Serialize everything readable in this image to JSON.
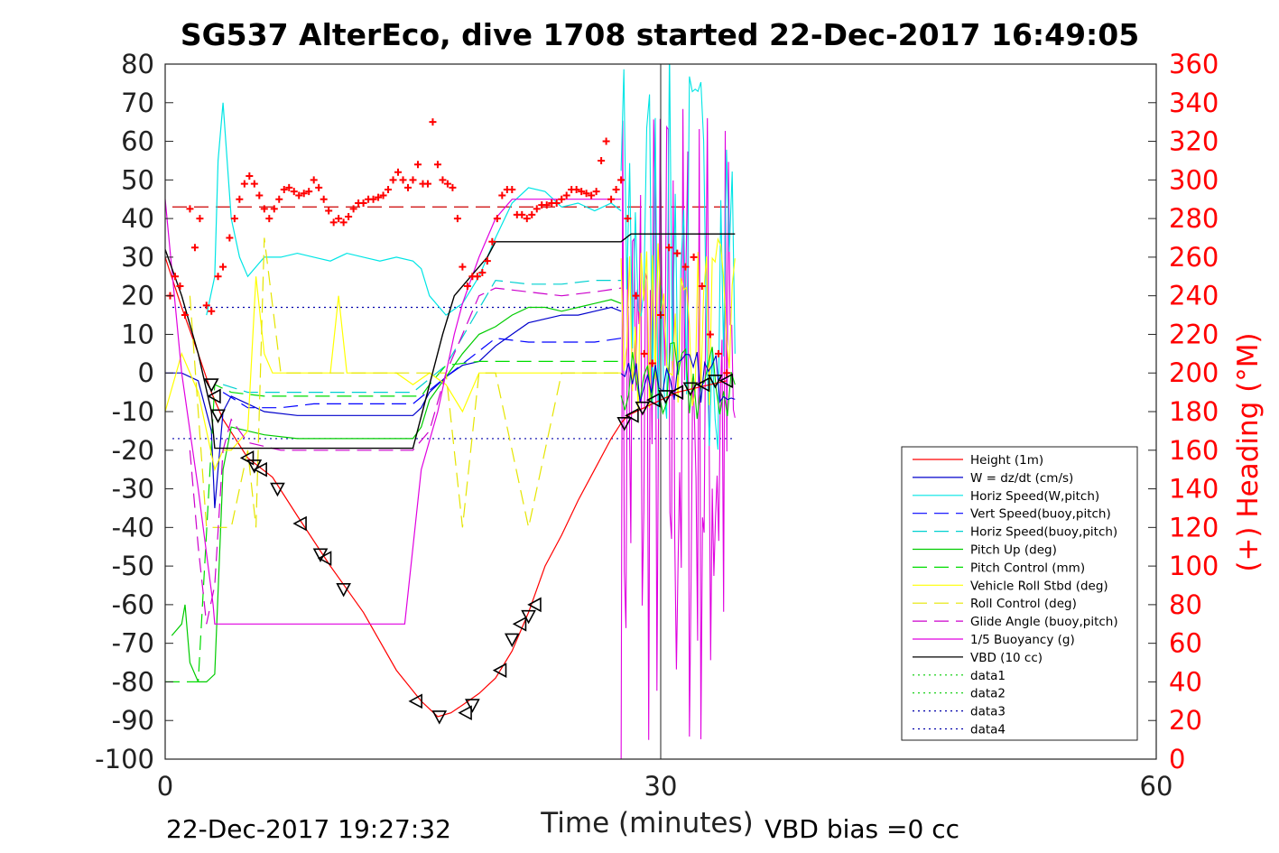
{
  "chart_data": {
    "type": "line",
    "title": "SG537 AlterEco, dive 1708 started 22-Dec-2017 16:49:05",
    "xlabel": "Time (minutes)",
    "ylabel_right": "(+) Heading (°M)",
    "xlim": [
      0,
      60
    ],
    "ylim": [
      -100,
      80
    ],
    "ylim_right": [
      0,
      360
    ],
    "xticks": [
      0,
      30,
      60
    ],
    "yticks": [
      80,
      70,
      60,
      50,
      40,
      30,
      20,
      10,
      0,
      -10,
      -20,
      -30,
      -40,
      -50,
      -60,
      -70,
      -80,
      -90,
      -100
    ],
    "yticks_right": [
      360,
      340,
      320,
      300,
      280,
      260,
      240,
      220,
      200,
      180,
      160,
      140,
      120,
      100,
      80,
      60,
      40,
      20,
      0
    ],
    "footer_left": "22-Dec-2017 19:27:32",
    "footer_right": "VBD bias =0 cc",
    "colors": {
      "height": "#ff0000",
      "w": "#0000cc",
      "horiz_w": "#00e5e5",
      "vert_buoy": "#0000ff",
      "horiz_buoy": "#00d0d0",
      "pitch": "#00cc00",
      "pitch_ctrl": "#00dd00",
      "roll": "#ffff00",
      "roll_ctrl": "#e5e500",
      "glide": "#cc00cc",
      "buoy": "#e000e0",
      "vbd": "#000000",
      "heading": "#ff0000",
      "axis_right": "#ff0000"
    },
    "reference_lines": [
      {
        "y": 43,
        "style": "dashed",
        "color": "#cc0000"
      },
      {
        "y": 17,
        "style": "dotted",
        "color": "#0000aa"
      },
      {
        "y": -17,
        "style": "dotted",
        "color": "#0000aa"
      }
    ],
    "series": [
      {
        "name": "Height (1m)",
        "key": "height",
        "style": "solid",
        "x": [
          0,
          1,
          2,
          2.8,
          3.5,
          5,
          6.5,
          8,
          10,
          12,
          14,
          15.5,
          16.5,
          17.3,
          18,
          19,
          20,
          21,
          22,
          23,
          24,
          25,
          26,
          27,
          27.6,
          28,
          29,
          30,
          31,
          32,
          33,
          34
        ],
        "y": [
          30,
          17,
          5,
          -5,
          -12,
          -22,
          -27,
          -37,
          -50,
          -62,
          -77,
          -85,
          -89,
          -88,
          -86,
          -83,
          -79,
          -72,
          -62,
          -50,
          -42,
          -33,
          -25,
          -17,
          -13,
          -11,
          -9,
          -7,
          -5,
          -4,
          -3,
          -2
        ]
      },
      {
        "name": "W = dz/dt (cm/s)",
        "key": "w",
        "style": "solid",
        "x": [
          0,
          1,
          2,
          2.8,
          3,
          3.5,
          4,
          5,
          6,
          8,
          10,
          12,
          14,
          15,
          15.5,
          16,
          17,
          18,
          19,
          20,
          21,
          22,
          23,
          24,
          25,
          26,
          27,
          27.6
        ],
        "y": [
          0,
          0,
          -2,
          -15,
          -35,
          -10,
          -6,
          -8,
          -10,
          -11,
          -11,
          -11,
          -11,
          -11,
          -9,
          -5,
          -1,
          2,
          3,
          7,
          10,
          13,
          14,
          15,
          15,
          16,
          17,
          16
        ]
      },
      {
        "name": "Horiz Speed(W,pitch)",
        "key": "horiz_w",
        "style": "solid",
        "x": [
          2.5,
          3,
          3.2,
          3.5,
          4,
          4.5,
          5,
          6,
          7,
          8,
          9,
          10,
          11,
          12,
          13,
          14,
          15,
          15.5,
          16,
          17,
          18,
          19,
          20,
          21,
          22,
          23,
          24,
          25,
          26,
          27,
          27.6
        ],
        "y": [
          15,
          25,
          55,
          70,
          40,
          30,
          25,
          30,
          30,
          31,
          30,
          29,
          31,
          30,
          29,
          30,
          29,
          27,
          20,
          15,
          18,
          25,
          35,
          44,
          48,
          47,
          43,
          44,
          42,
          44,
          42
        ]
      },
      {
        "name": "Vert Speed(buoy,pitch)",
        "key": "vert_buoy",
        "style": "dashed",
        "x": [
          3.5,
          5,
          7,
          9,
          11,
          13,
          15,
          17,
          20,
          22,
          24,
          26,
          27.6
        ],
        "y": [
          -5,
          -9,
          -9,
          -8,
          -8,
          -8,
          -8,
          -1,
          9,
          8,
          8,
          8,
          9
        ]
      },
      {
        "name": "Horiz Speed(buoy,pitch)",
        "key": "horiz_buoy",
        "style": "dashed",
        "x": [
          3.5,
          5,
          7,
          9,
          11,
          13,
          15,
          17,
          20,
          22,
          24,
          26,
          27.6
        ],
        "y": [
          -3,
          -5,
          -5,
          -5,
          -5,
          -5,
          -5,
          2,
          24,
          23,
          23,
          24,
          24
        ]
      },
      {
        "name": "Pitch Up (deg)",
        "key": "pitch",
        "style": "solid",
        "x": [
          0.4,
          1,
          1.2,
          1.5,
          2,
          2.5,
          3,
          3.5,
          4,
          5,
          6,
          8,
          10,
          12,
          14,
          15,
          15.5,
          16,
          17,
          18,
          19,
          20,
          21,
          22,
          23,
          24,
          25,
          26,
          27,
          27.6
        ],
        "y": [
          -68,
          -65,
          -60,
          -75,
          -80,
          -80,
          -78,
          -25,
          -14,
          -15,
          -16,
          -17,
          -17,
          -17,
          -17,
          -17,
          -14,
          -7,
          -1,
          5,
          10,
          12,
          15,
          17,
          17,
          16,
          17,
          18,
          19,
          18
        ]
      },
      {
        "name": "Pitch Control (mm)",
        "key": "pitch_ctrl",
        "style": "dashed",
        "x": [
          0,
          2,
          3,
          4,
          6,
          8,
          10,
          12,
          14,
          15.5,
          16,
          17,
          19,
          22,
          24,
          26,
          27.6
        ],
        "y": [
          -80,
          -80,
          -3,
          -5,
          -6,
          -6,
          -6,
          -6,
          -6,
          -6,
          -3,
          2,
          3,
          3,
          3,
          3,
          3
        ]
      },
      {
        "name": "Vehicle Roll Stbd (deg)",
        "key": "roll",
        "style": "solid",
        "x": [
          0,
          1,
          2,
          2.5,
          3,
          3.5,
          4,
          5,
          5.5,
          6,
          6.5,
          7,
          8,
          9,
          10,
          10.5,
          11,
          12,
          14,
          15,
          16,
          17,
          18,
          19,
          20,
          21,
          22,
          24,
          26,
          27.6
        ],
        "y": [
          -10,
          5,
          -5,
          -15,
          -25,
          -20,
          -20,
          -15,
          25,
          5,
          0,
          0,
          0,
          0,
          0,
          20,
          0,
          0,
          0,
          -3,
          0,
          -3,
          -10,
          0,
          0,
          0,
          0,
          0,
          0,
          0
        ]
      },
      {
        "name": "Roll Control (deg)",
        "key": "roll_ctrl",
        "style": "dashed",
        "x": [
          1.5,
          2.5,
          3,
          4,
          5,
          5.5,
          6,
          7,
          9,
          10,
          11,
          13,
          15,
          16,
          17,
          18,
          19,
          20,
          22,
          24,
          26,
          27.6
        ],
        "y": [
          20,
          -40,
          -40,
          -40,
          -20,
          -40,
          35,
          0,
          0,
          0,
          0,
          0,
          0,
          0,
          0,
          -40,
          0,
          0,
          -40,
          0,
          0,
          0
        ]
      },
      {
        "name": "Glide Angle (buoy,pitch)",
        "key": "glide",
        "style": "dashed",
        "x": [
          1.5,
          2,
          2.5,
          3,
          3.5,
          4,
          5,
          7,
          9,
          11,
          13,
          15,
          16,
          17,
          19,
          20,
          22,
          24,
          26,
          27.6
        ],
        "y": [
          -20,
          -45,
          -65,
          -55,
          -20,
          -12,
          -18,
          -20,
          -20,
          -20,
          -20,
          -20,
          -15,
          0,
          20,
          22,
          21,
          20,
          21,
          22
        ]
      },
      {
        "name": "1/5 Buoyancy (g)",
        "key": "buoy",
        "style": "solid",
        "x": [
          0,
          1,
          2,
          2.9,
          3,
          14.5,
          15.5,
          16.5,
          17.5,
          18,
          19,
          20,
          21,
          27.6
        ],
        "y": [
          45,
          0,
          -30,
          -60,
          -65,
          -65,
          -25,
          -10,
          10,
          18,
          30,
          40,
          45,
          45
        ]
      },
      {
        "name": "VBD (10 cc)",
        "key": "vbd",
        "style": "solid",
        "x": [
          0,
          1,
          2,
          2.8,
          3,
          15,
          16.8,
          17.5,
          18.5,
          19.5,
          20,
          21,
          24,
          27.6,
          28.2,
          29,
          31,
          34.5
        ],
        "y": [
          32,
          20,
          5,
          -10,
          -19.5,
          -19.5,
          10,
          20,
          25,
          30,
          34,
          34,
          34,
          34,
          36,
          36,
          36,
          36
        ]
      },
      {
        "name": "data1",
        "key": "data1",
        "style": "dotted",
        "x": [],
        "y": []
      },
      {
        "name": "data2",
        "key": "data2",
        "style": "dotted",
        "x": [],
        "y": []
      },
      {
        "name": "data3",
        "key": "data3",
        "style": "dotted",
        "x": [],
        "y": []
      },
      {
        "name": "data4",
        "key": "data4",
        "style": "dotted",
        "x": [],
        "y": []
      }
    ],
    "noisy_segment": {
      "x_start": 27.6,
      "x_end": 34.5
    },
    "heading_points": {
      "x": [
        0.3,
        0.6,
        0.9,
        1.2,
        1.5,
        1.8,
        2.1,
        2.5,
        2.8,
        3.2,
        3.5,
        3.9,
        4.2,
        4.5,
        4.8,
        5.1,
        5.4,
        5.7,
        6.0,
        6.3,
        6.6,
        6.9,
        7.2,
        7.5,
        7.8,
        8.1,
        8.4,
        8.7,
        9.0,
        9.3,
        9.6,
        9.9,
        10.2,
        10.5,
        10.8,
        11.1,
        11.4,
        11.7,
        12.0,
        12.3,
        12.6,
        12.9,
        13.2,
        13.5,
        13.8,
        14.1,
        14.4,
        14.7,
        15.0,
        15.3,
        15.6,
        15.9,
        16.2,
        16.5,
        16.8,
        17.1,
        17.4,
        17.7,
        18.0,
        18.3,
        18.6,
        18.9,
        19.2,
        19.5,
        19.8,
        20.1,
        20.4,
        20.7,
        21.0,
        21.3,
        21.6,
        21.9,
        22.2,
        22.5,
        22.8,
        23.1,
        23.4,
        23.7,
        24.0,
        24.3,
        24.6,
        24.9,
        25.2,
        25.5,
        25.8,
        26.1,
        26.4,
        26.7,
        27.0,
        27.3,
        27.6,
        28.0,
        28.5,
        29.0,
        29.5,
        30.0,
        30.5,
        31.0,
        31.5,
        32.0,
        32.5,
        33.0,
        33.5,
        34.0
      ],
      "y": [
        240,
        250,
        245,
        230,
        285,
        265,
        280,
        235,
        232,
        250,
        255,
        270,
        280,
        290,
        298,
        302,
        298,
        292,
        285,
        280,
        285,
        290,
        295,
        296,
        294,
        292,
        293,
        294,
        300,
        296,
        290,
        284,
        278,
        280,
        278,
        281,
        285,
        288,
        288,
        290,
        290,
        291,
        292,
        295,
        300,
        304,
        300,
        296,
        300,
        308,
        298,
        298,
        330,
        308,
        300,
        298,
        296,
        280,
        255,
        245,
        250,
        250,
        252,
        258,
        268,
        280,
        292,
        295,
        295,
        282,
        282,
        280,
        282,
        285,
        287,
        287,
        288,
        288,
        290,
        292,
        295,
        295,
        294,
        293,
        292,
        294,
        310,
        320,
        290,
        295,
        300,
        280,
        240,
        210,
        205,
        230,
        265,
        262,
        255,
        260,
        245,
        220,
        210,
        200
      ]
    },
    "markers": {
      "x": [
        2.8,
        3.0,
        3.2,
        5.0,
        5.4,
        5.8,
        6.8,
        8.2,
        9.4,
        9.7,
        10.8,
        15.2,
        16.6,
        18.2,
        18.6,
        20.3,
        21.0,
        21.5,
        22.0,
        22.4,
        27.8,
        28.3,
        28.9,
        29.6,
        30.3,
        31.0,
        31.8,
        32.6,
        33.3,
        34.0
      ],
      "y": [
        -3,
        -6,
        -11,
        -22,
        -24,
        -25,
        -30,
        -39,
        -47,
        -48,
        -56,
        -85,
        -89,
        -88,
        -86,
        -77,
        -69,
        -65,
        -63,
        -60,
        -13,
        -11,
        -9,
        -7,
        -6,
        -5,
        -4,
        -3,
        -2,
        -2
      ]
    }
  }
}
